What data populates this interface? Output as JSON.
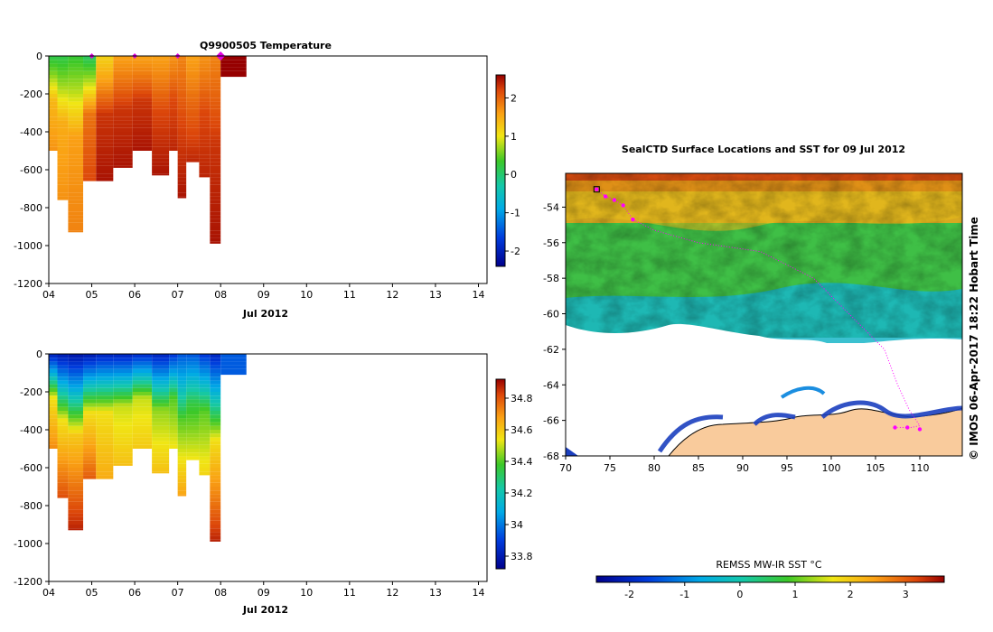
{
  "chart_data": [
    {
      "id": "temperature",
      "type": "heatmap",
      "title": "Q9900505  Temperature",
      "xlabel": "Jul 2012",
      "ylabel": "",
      "x_ticks": [
        "04",
        "05",
        "06",
        "07",
        "08",
        "09",
        "10",
        "11",
        "12",
        "13",
        "14"
      ],
      "x_range_days": [
        4,
        14.2
      ],
      "y_ticks": [
        "0",
        "-200",
        "-400",
        "-600",
        "-800",
        "-1000",
        "-1200"
      ],
      "ylim": [
        -1200,
        0
      ],
      "colorbar": {
        "min": -2.4,
        "max": 2.6,
        "ticks": [
          "2",
          "1",
          "0",
          "-1",
          "-2"
        ]
      },
      "profiles": [
        {
          "t0": 4.0,
          "t1": 4.2,
          "depth": -500,
          "surf": 0.2,
          "mid": 1.4,
          "deep": 1.7
        },
        {
          "t0": 4.2,
          "t1": 4.45,
          "depth": -760,
          "surf": 0.2,
          "mid": 1.5,
          "deep": 1.7
        },
        {
          "t0": 4.45,
          "t1": 4.8,
          "depth": -930,
          "surf": 0.3,
          "mid": 1.6,
          "deep": 1.8
        },
        {
          "t0": 4.8,
          "t1": 5.1,
          "depth": -660,
          "surf": 0.1,
          "mid": 1.9,
          "deep": 2.2
        },
        {
          "t0": 5.1,
          "t1": 5.5,
          "depth": -660,
          "surf": 1.2,
          "mid": 2.3,
          "deep": 2.5
        },
        {
          "t0": 5.5,
          "t1": 5.95,
          "depth": -590,
          "surf": 1.6,
          "mid": 2.3,
          "deep": 2.5
        },
        {
          "t0": 5.95,
          "t1": 6.4,
          "depth": -500,
          "surf": 1.6,
          "mid": 2.3,
          "deep": 2.5
        },
        {
          "t0": 6.4,
          "t1": 6.8,
          "depth": -630,
          "surf": 1.6,
          "mid": 2.2,
          "deep": 2.5
        },
        {
          "t0": 6.8,
          "t1": 7.0,
          "depth": -500,
          "surf": 1.7,
          "mid": 2.2,
          "deep": 2.4
        },
        {
          "t0": 7.0,
          "t1": 7.2,
          "depth": -750,
          "surf": 1.8,
          "mid": 2.2,
          "deep": 2.5
        },
        {
          "t0": 7.2,
          "t1": 7.5,
          "depth": -560,
          "surf": 1.6,
          "mid": 2.0,
          "deep": 2.4
        },
        {
          "t0": 7.5,
          "t1": 7.75,
          "depth": -640,
          "surf": 1.7,
          "mid": 2.2,
          "deep": 2.4
        },
        {
          "t0": 7.75,
          "t1": 8.0,
          "depth": -990,
          "surf": 1.8,
          "mid": 2.3,
          "deep": 2.5
        },
        {
          "t0": 8.0,
          "t1": 8.6,
          "depth": -110,
          "surf": 2.6,
          "mid": 2.6,
          "deep": 2.6
        }
      ],
      "surface_markers": [
        5.0,
        6.0,
        7.0,
        8.0
      ]
    },
    {
      "id": "salinity",
      "type": "heatmap",
      "title": "",
      "xlabel": "Jul 2012",
      "ylabel": "",
      "x_ticks": [
        "04",
        "05",
        "06",
        "07",
        "08",
        "09",
        "10",
        "11",
        "12",
        "13",
        "14"
      ],
      "x_range_days": [
        4,
        14.2
      ],
      "y_ticks": [
        "0",
        "-200",
        "-400",
        "-600",
        "-800",
        "-1000",
        "-1200"
      ],
      "ylim": [
        -1200,
        0
      ],
      "colorbar": {
        "min": 33.72,
        "max": 34.92,
        "ticks": [
          "34.8",
          "34.6",
          "34.4",
          "34.2",
          "34",
          "33.8"
        ]
      },
      "profiles": [
        {
          "t0": 4.0,
          "t1": 4.2,
          "depth": -500,
          "surf": 33.85,
          "mid": 34.55,
          "deep": 34.72
        },
        {
          "t0": 4.2,
          "t1": 4.45,
          "depth": -760,
          "surf": 33.82,
          "mid": 34.55,
          "deep": 34.82
        },
        {
          "t0": 4.45,
          "t1": 4.8,
          "depth": -930,
          "surf": 33.8,
          "mid": 34.6,
          "deep": 34.88
        },
        {
          "t0": 4.8,
          "t1": 5.1,
          "depth": -660,
          "surf": 33.82,
          "mid": 34.55,
          "deep": 34.8
        },
        {
          "t0": 5.1,
          "t1": 5.5,
          "depth": -660,
          "surf": 33.85,
          "mid": 34.55,
          "deep": 34.66
        },
        {
          "t0": 5.5,
          "t1": 5.95,
          "depth": -590,
          "surf": 33.85,
          "mid": 34.5,
          "deep": 34.62
        },
        {
          "t0": 5.95,
          "t1": 6.4,
          "depth": -500,
          "surf": 33.88,
          "mid": 34.5,
          "deep": 34.6
        },
        {
          "t0": 6.4,
          "t1": 6.8,
          "depth": -630,
          "surf": 33.85,
          "mid": 34.45,
          "deep": 34.62
        },
        {
          "t0": 6.8,
          "t1": 7.0,
          "depth": -500,
          "surf": 33.9,
          "mid": 34.4,
          "deep": 34.55
        },
        {
          "t0": 7.0,
          "t1": 7.2,
          "depth": -750,
          "surf": 33.95,
          "mid": 34.4,
          "deep": 34.68
        },
        {
          "t0": 7.2,
          "t1": 7.5,
          "depth": -560,
          "surf": 33.95,
          "mid": 34.35,
          "deep": 34.55
        },
        {
          "t0": 7.5,
          "t1": 7.75,
          "depth": -640,
          "surf": 33.9,
          "mid": 34.4,
          "deep": 34.58
        },
        {
          "t0": 7.75,
          "t1": 8.0,
          "depth": -990,
          "surf": 33.85,
          "mid": 34.55,
          "deep": 34.88
        },
        {
          "t0": 8.0,
          "t1": 8.6,
          "depth": -110,
          "surf": 33.95,
          "mid": 33.95,
          "deep": 33.95
        }
      ]
    },
    {
      "id": "sst_map",
      "type": "heatmap",
      "title": "SealCTD Surface Locations and SST for 09 Jul 2012",
      "x_ticks": [
        "70",
        "75",
        "80",
        "85",
        "90",
        "95",
        "100",
        "105",
        "110"
      ],
      "xlim": [
        70,
        114.8
      ],
      "y_ticks": [
        "-54",
        "-56",
        "-58",
        "-60",
        "-62",
        "-64",
        "-66",
        "-68"
      ],
      "ylim": [
        -68,
        -52.1
      ],
      "side_label": "© IMOS 06-Apr-2017 18:22 Hobart Time",
      "colorbar_label": "REMSS MW-IR SST °C",
      "colorbar": {
        "min": -2.6,
        "max": 3.7,
        "ticks": [
          "-2",
          "-1",
          "0",
          "1",
          "2",
          "3"
        ]
      },
      "track": [
        [
          73.5,
          -53.0
        ],
        [
          74.5,
          -53.4
        ],
        [
          75.5,
          -53.6
        ],
        [
          76.5,
          -53.9
        ],
        [
          77.6,
          -54.7
        ],
        [
          80,
          -55.3
        ],
        [
          85,
          -56.0
        ],
        [
          92,
          -56.5
        ],
        [
          98,
          -58.0
        ],
        [
          103,
          -60.5
        ],
        [
          106,
          -62.0
        ],
        [
          107.5,
          -64.0
        ],
        [
          108.8,
          -65.4
        ],
        [
          110.0,
          -66.3
        ],
        [
          109.0,
          -66.4
        ],
        [
          107.5,
          -66.4
        ]
      ],
      "track_markers": [
        [
          73.5,
          -53.0
        ],
        [
          74.5,
          -53.4
        ],
        [
          75.5,
          -53.6
        ],
        [
          76.5,
          -53.9
        ],
        [
          77.6,
          -54.7
        ],
        [
          107.2,
          -66.4
        ],
        [
          108.6,
          -66.4
        ],
        [
          110.0,
          -66.5
        ]
      ],
      "track_color": "#ff00ff"
    }
  ]
}
